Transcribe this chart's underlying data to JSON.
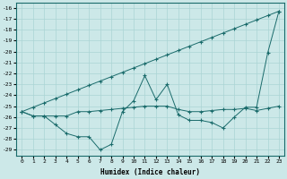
{
  "x": [
    0,
    1,
    2,
    3,
    4,
    5,
    6,
    7,
    8,
    9,
    10,
    11,
    12,
    13,
    14,
    15,
    16,
    17,
    18,
    19,
    20,
    21,
    22,
    23
  ],
  "line1": [
    -25.5,
    -25.9,
    -25.9,
    -25.9,
    -25.9,
    -25.5,
    -25.5,
    -25.4,
    -25.3,
    -25.2,
    -25.1,
    -25.0,
    -25.0,
    -25.0,
    -25.3,
    -25.5,
    -25.5,
    -25.4,
    -25.3,
    -25.3,
    -25.2,
    -25.4,
    -25.2,
    -25.0
  ],
  "line2": [
    -25.5,
    -25.9,
    -25.9,
    -26.7,
    -27.5,
    -27.8,
    -27.8,
    -29.0,
    -28.5,
    -25.5,
    -24.5,
    -22.2,
    -24.4,
    -23.0,
    -25.8,
    -26.3,
    -26.3,
    -26.5,
    -27.0,
    -26.0,
    -25.1,
    -25.1,
    -20.1,
    -16.3
  ],
  "line3": [
    -25.5,
    -25.1,
    -24.7,
    -24.3,
    -23.9,
    -23.5,
    -23.1,
    -22.7,
    -22.3,
    -21.9,
    -21.5,
    -21.1,
    -20.7,
    -20.3,
    -19.9,
    -19.5,
    -19.1,
    -18.7,
    -18.3,
    -17.9,
    -17.5,
    -17.1,
    -16.7,
    -16.3
  ],
  "xlabel": "Humidex (Indice chaleur)",
  "ylabel": "",
  "ylim": [
    -29.5,
    -15.5
  ],
  "xlim": [
    -0.5,
    23.5
  ],
  "yticks": [
    -29,
    -28,
    -27,
    -26,
    -25,
    -24,
    -23,
    -22,
    -21,
    -20,
    -19,
    -18,
    -17,
    -16
  ],
  "xticks": [
    0,
    1,
    2,
    3,
    4,
    5,
    6,
    7,
    8,
    9,
    10,
    11,
    12,
    13,
    14,
    15,
    16,
    17,
    18,
    19,
    20,
    21,
    22,
    23
  ],
  "bg_color": "#cce8e8",
  "line_color": "#1a6b6b",
  "grid_color": "#aad4d4"
}
